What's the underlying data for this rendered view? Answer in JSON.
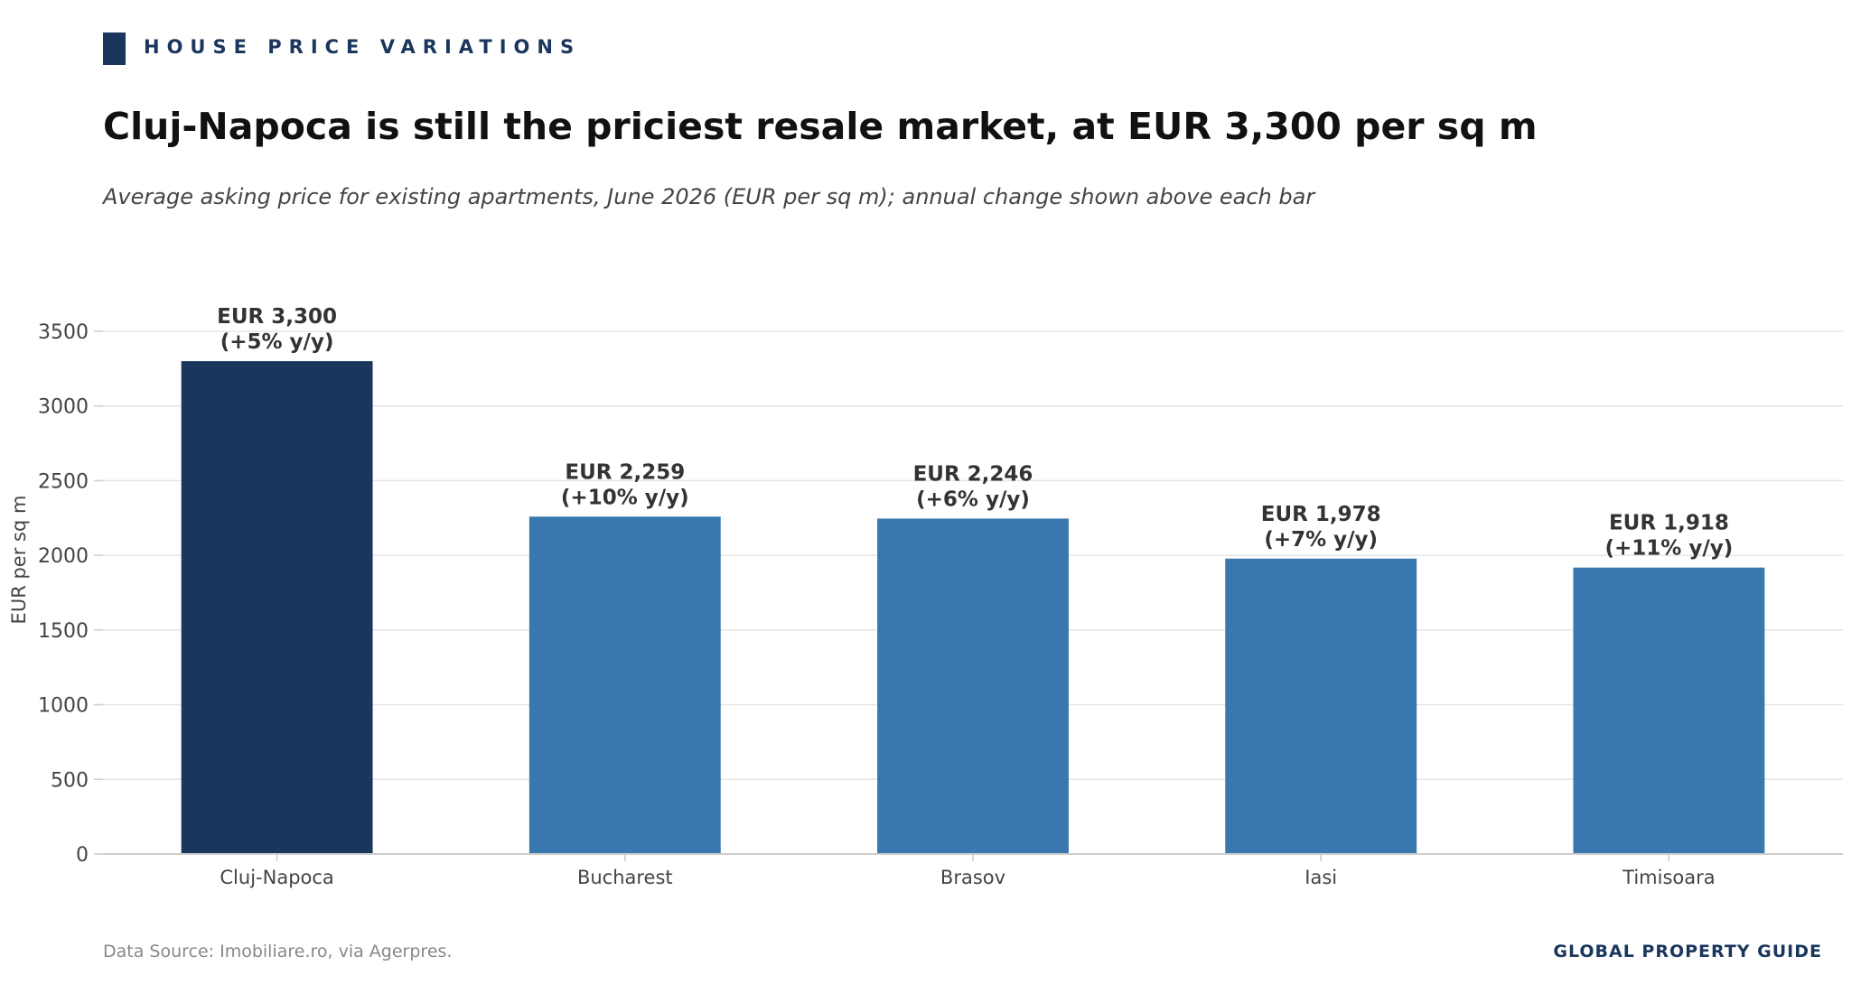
{
  "header": {
    "kicker": "HOUSE PRICE VARIATIONS",
    "title": "Cluj-Napoca is still the priciest resale market, at EUR 3,300 per sq m",
    "subtitle": "Average asking price for existing apartments, June 2026 (EUR per sq m); annual change shown above each bar"
  },
  "footer": {
    "source": "Data Source: Imobiliare.ro, via Agerpres.",
    "brand": "GLOBAL PROPERTY GUIDE"
  },
  "colors": {
    "highlight": "#1a365d",
    "bar": "#3878ae",
    "grid": "#e6e6e6",
    "axis": "#cccccc",
    "label": "#333333",
    "tick": "#444444"
  },
  "chart_data": {
    "type": "bar",
    "categories": [
      "Cluj-Napoca",
      "Bucharest",
      "Brasov",
      "Iasi",
      "Timisoara"
    ],
    "values": [
      3300,
      2259,
      2246,
      1978,
      1918
    ],
    "data_labels": [
      [
        "EUR 3,300",
        "(+5% y/y)"
      ],
      [
        "EUR 2,259",
        "(+10% y/y)"
      ],
      [
        "EUR 2,246",
        "(+6% y/y)"
      ],
      [
        "EUR 1,978",
        "(+7% y/y)"
      ],
      [
        "EUR 1,918",
        "(+11% y/y)"
      ]
    ],
    "highlight_index": 0,
    "xlabel": "",
    "ylabel": "EUR per sq m",
    "ylim": [
      0,
      3500
    ],
    "yticks": [
      0,
      500,
      1000,
      1500,
      2000,
      2500,
      3000,
      3500
    ],
    "grid": true
  }
}
